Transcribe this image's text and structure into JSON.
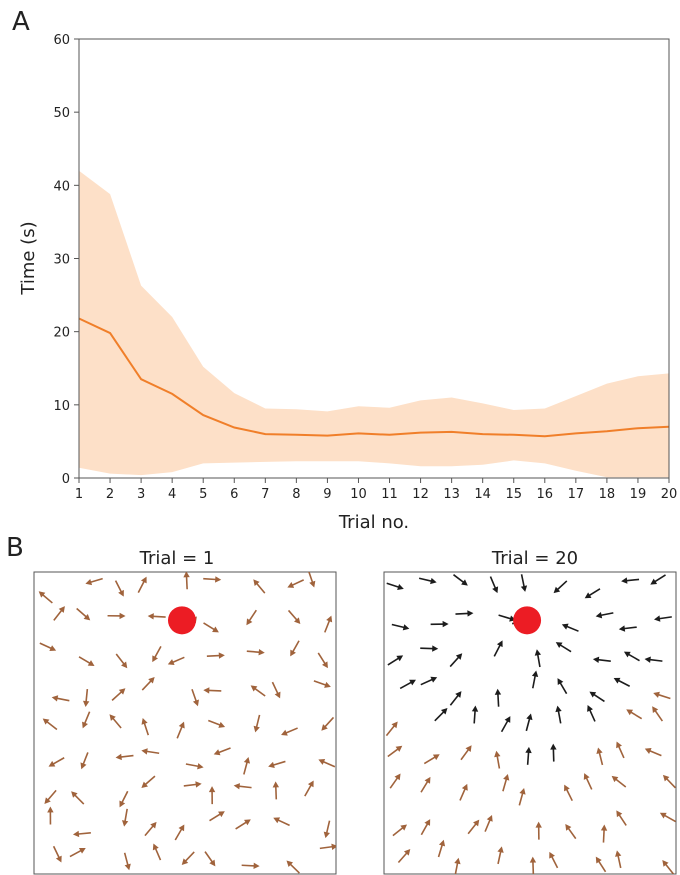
{
  "panel_labels": {
    "a": "A",
    "b": "B"
  },
  "colors": {
    "line": "#f07f2a",
    "band": "#fde0c8",
    "axis": "#555555",
    "goal": "#ec1c24",
    "arrow_untrained": "#a0633c",
    "arrow_trained": "#1c1c1c"
  },
  "chart_data": [
    {
      "type": "line",
      "title": "",
      "xlabel": "Trial no.",
      "ylabel": "Time (s)",
      "xlim": [
        1,
        20
      ],
      "ylim": [
        0,
        60
      ],
      "xticks": [
        1,
        2,
        3,
        4,
        5,
        6,
        7,
        8,
        9,
        10,
        11,
        12,
        13,
        14,
        15,
        16,
        17,
        18,
        19,
        20
      ],
      "yticks": [
        0,
        10,
        20,
        30,
        40,
        50,
        60
      ],
      "grid": false,
      "x": [
        1,
        2,
        3,
        4,
        5,
        6,
        7,
        8,
        9,
        10,
        11,
        12,
        13,
        14,
        15,
        16,
        17,
        18,
        19,
        20
      ],
      "series": [
        {
          "values": [
            21.8,
            19.8,
            13.5,
            11.5,
            8.6,
            6.9,
            6.0,
            5.9,
            5.8,
            6.1,
            5.9,
            6.2,
            6.3,
            6.0,
            5.9,
            5.7,
            6.1,
            6.4,
            6.8,
            7.0
          ],
          "band_upper": [
            42.0,
            38.8,
            26.3,
            22.0,
            15.2,
            11.6,
            9.5,
            9.4,
            9.1,
            9.8,
            9.6,
            10.6,
            11.0,
            10.2,
            9.3,
            9.5,
            11.2,
            12.9,
            13.9,
            14.3
          ],
          "band_lower": [
            1.4,
            0.6,
            0.4,
            0.8,
            2.0,
            2.1,
            2.2,
            2.3,
            2.3,
            2.3,
            2.0,
            1.6,
            1.6,
            1.8,
            2.4,
            2.0,
            1.0,
            0.1,
            0.1,
            0.1
          ]
        }
      ]
    },
    {
      "type": "vector_field",
      "title": "Trial = 1",
      "goal": {
        "x": 0.49,
        "y": 0.84
      },
      "grid_cols": 9,
      "grid_rows": 9,
      "pattern": "random"
    },
    {
      "type": "vector_field",
      "title": "Trial = 20",
      "goal": {
        "x": 0.49,
        "y": 0.84
      },
      "grid_cols": 9,
      "grid_rows": 9,
      "pattern": "converging"
    }
  ]
}
